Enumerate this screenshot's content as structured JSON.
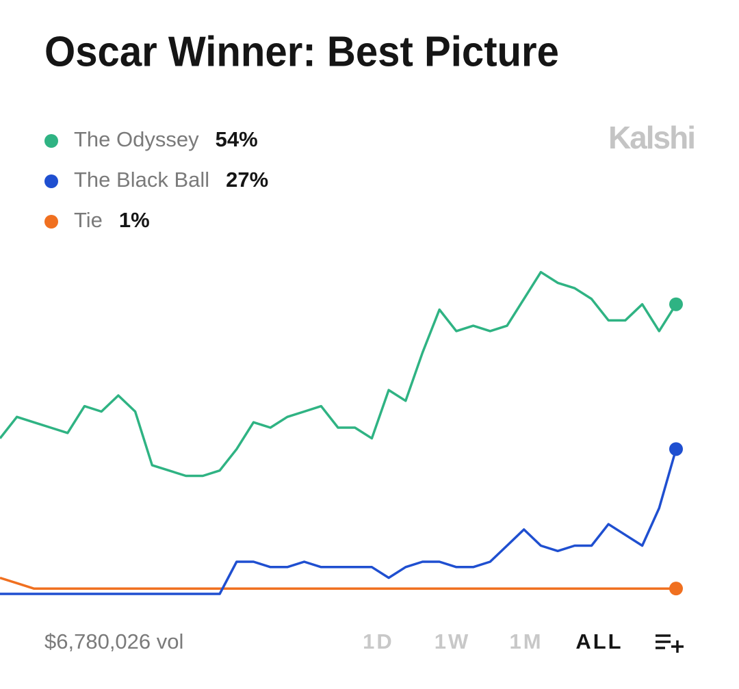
{
  "header": {
    "title": "Oscar Winner: Best Picture",
    "brand": "Kalshi"
  },
  "chart_data": {
    "type": "line",
    "ylim": [
      0,
      62
    ],
    "series": [
      {
        "name": "The Odyssey",
        "color": "#2fb383",
        "last_label": "54%",
        "values": [
          29,
          33,
          32,
          31,
          30,
          35,
          34,
          37,
          34,
          24,
          23,
          22,
          22,
          23,
          27,
          32,
          31,
          33,
          34,
          35,
          31,
          31,
          29,
          38,
          36,
          45,
          53,
          49,
          50,
          49,
          50,
          55,
          60,
          58,
          57,
          55,
          51,
          51,
          54,
          49,
          54
        ]
      },
      {
        "name": "The Black Ball",
        "color": "#1f4fd0",
        "last_label": "27%",
        "values": [
          0,
          0,
          0,
          0,
          0,
          0,
          0,
          0,
          0,
          0,
          0,
          0,
          0,
          0,
          6,
          6,
          5,
          5,
          6,
          5,
          5,
          5,
          5,
          3,
          5,
          6,
          6,
          5,
          5,
          6,
          9,
          12,
          9,
          8,
          9,
          9,
          13,
          11,
          9,
          16,
          27
        ]
      },
      {
        "name": "Tie",
        "color": "#f07020",
        "last_label": "1%",
        "values": [
          3,
          2,
          1,
          1,
          1,
          1,
          1,
          1,
          1,
          1,
          1,
          1,
          1,
          1,
          1,
          1,
          1,
          1,
          1,
          1,
          1,
          1,
          1,
          1,
          1,
          1,
          1,
          1,
          1,
          1,
          1,
          1,
          1,
          1,
          1,
          1,
          1,
          1,
          1,
          1,
          1
        ]
      }
    ]
  },
  "footer": {
    "volume": "$6,780,026 vol",
    "ranges": [
      "1D",
      "1W",
      "1M",
      "ALL"
    ],
    "selected": "ALL"
  }
}
